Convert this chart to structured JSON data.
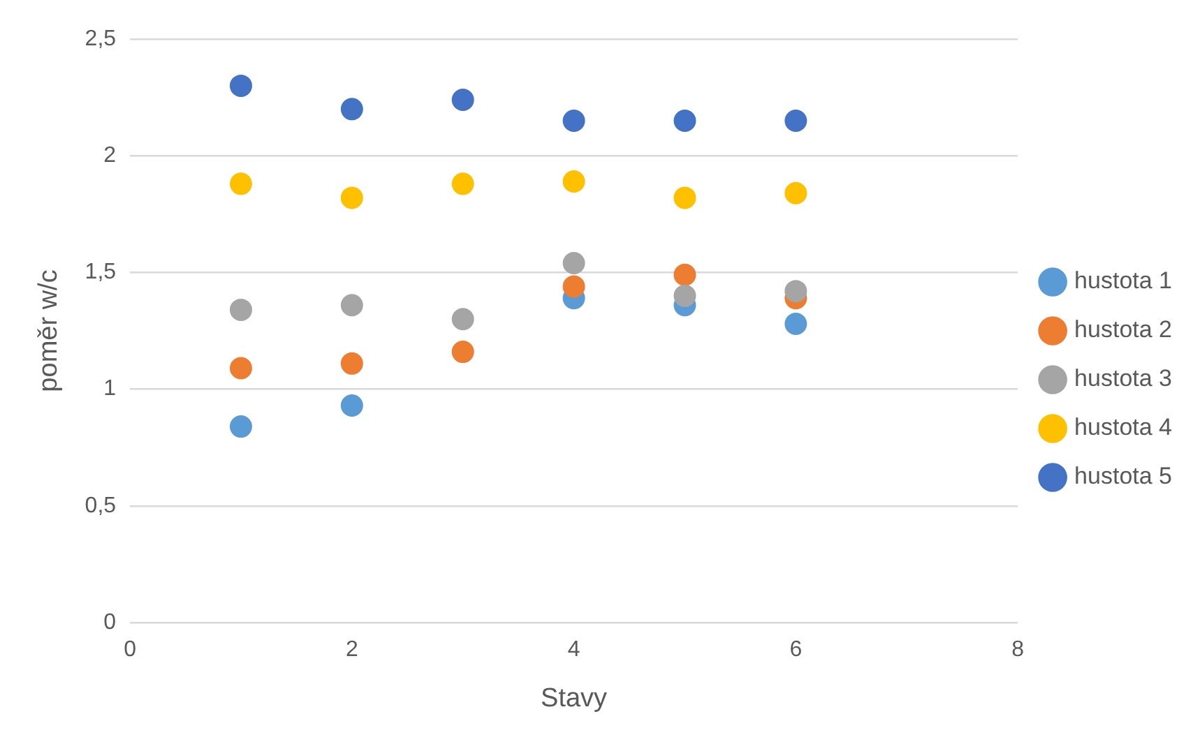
{
  "chart_data": {
    "type": "scatter",
    "xlabel": "Stavy",
    "ylabel": "poměr w/c",
    "x": [
      1,
      2,
      3,
      4,
      5,
      6
    ],
    "series": [
      {
        "name": "hustota 1",
        "color": "#5b9bd5",
        "values": [
          0.84,
          0.93,
          null,
          1.39,
          1.36,
          1.28
        ]
      },
      {
        "name": "hustota 2",
        "color": "#ed7d31",
        "values": [
          1.09,
          1.11,
          1.16,
          1.44,
          1.49,
          1.39
        ]
      },
      {
        "name": "hustota 3",
        "color": "#a5a5a5",
        "values": [
          1.34,
          1.36,
          1.3,
          1.54,
          1.4,
          1.42
        ]
      },
      {
        "name": "hustota 4",
        "color": "#ffc000",
        "values": [
          1.88,
          1.82,
          1.88,
          1.89,
          1.82,
          1.84
        ]
      },
      {
        "name": "hustota 5",
        "color": "#4472c4",
        "values": [
          2.3,
          2.2,
          2.24,
          2.15,
          2.15,
          2.15
        ]
      }
    ],
    "xlim": [
      0,
      8
    ],
    "xticks": [
      0,
      2,
      4,
      6,
      8
    ],
    "ylim": [
      0,
      2.5
    ],
    "yticks": [
      {
        "value": 0,
        "label": "0"
      },
      {
        "value": 0.5,
        "label": "0,5"
      },
      {
        "value": 1,
        "label": "1"
      },
      {
        "value": 1.5,
        "label": "1,5"
      },
      {
        "value": 2,
        "label": "2"
      },
      {
        "value": 2.5,
        "label": "2,5"
      }
    ],
    "grid": "y",
    "legend": "right",
    "marker": "circle"
  }
}
